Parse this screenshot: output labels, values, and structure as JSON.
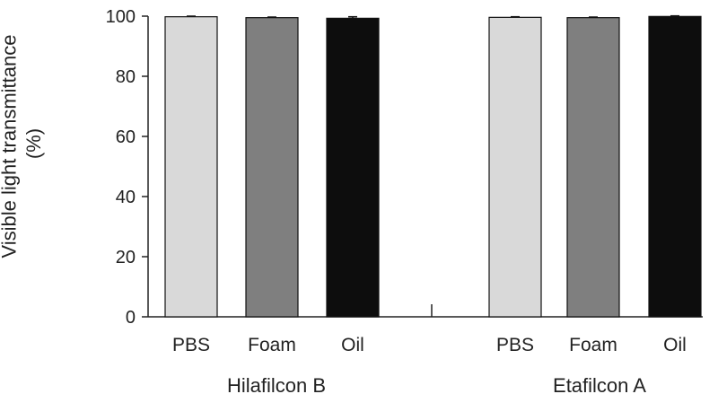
{
  "chart_data": {
    "type": "bar",
    "title": "",
    "ylabel_lines": [
      "Visible light transmittance",
      "(%)"
    ],
    "xlabel": "",
    "ylim": [
      0,
      100
    ],
    "yticks": [
      0,
      20,
      40,
      60,
      80,
      100
    ],
    "grid": false,
    "legend": "none",
    "groups": [
      {
        "name": "Hilafilcon B",
        "bars": [
          {
            "category": "PBS",
            "value": 99.8,
            "error": 0.2,
            "color": "#d9d9d9"
          },
          {
            "category": "Foam",
            "value": 99.5,
            "error": 0.2,
            "color": "#7f7f7f"
          },
          {
            "category": "Oil",
            "value": 99.3,
            "error": 0.5,
            "color": "#0d0d0d"
          }
        ]
      },
      {
        "name": "Etafilcon A",
        "bars": [
          {
            "category": "PBS",
            "value": 99.6,
            "error": 0.2,
            "color": "#d9d9d9"
          },
          {
            "category": "Foam",
            "value": 99.5,
            "error": 0.2,
            "color": "#7f7f7f"
          },
          {
            "category": "Oil",
            "value": 99.9,
            "error": 0.2,
            "color": "#0d0d0d"
          }
        ]
      }
    ]
  }
}
